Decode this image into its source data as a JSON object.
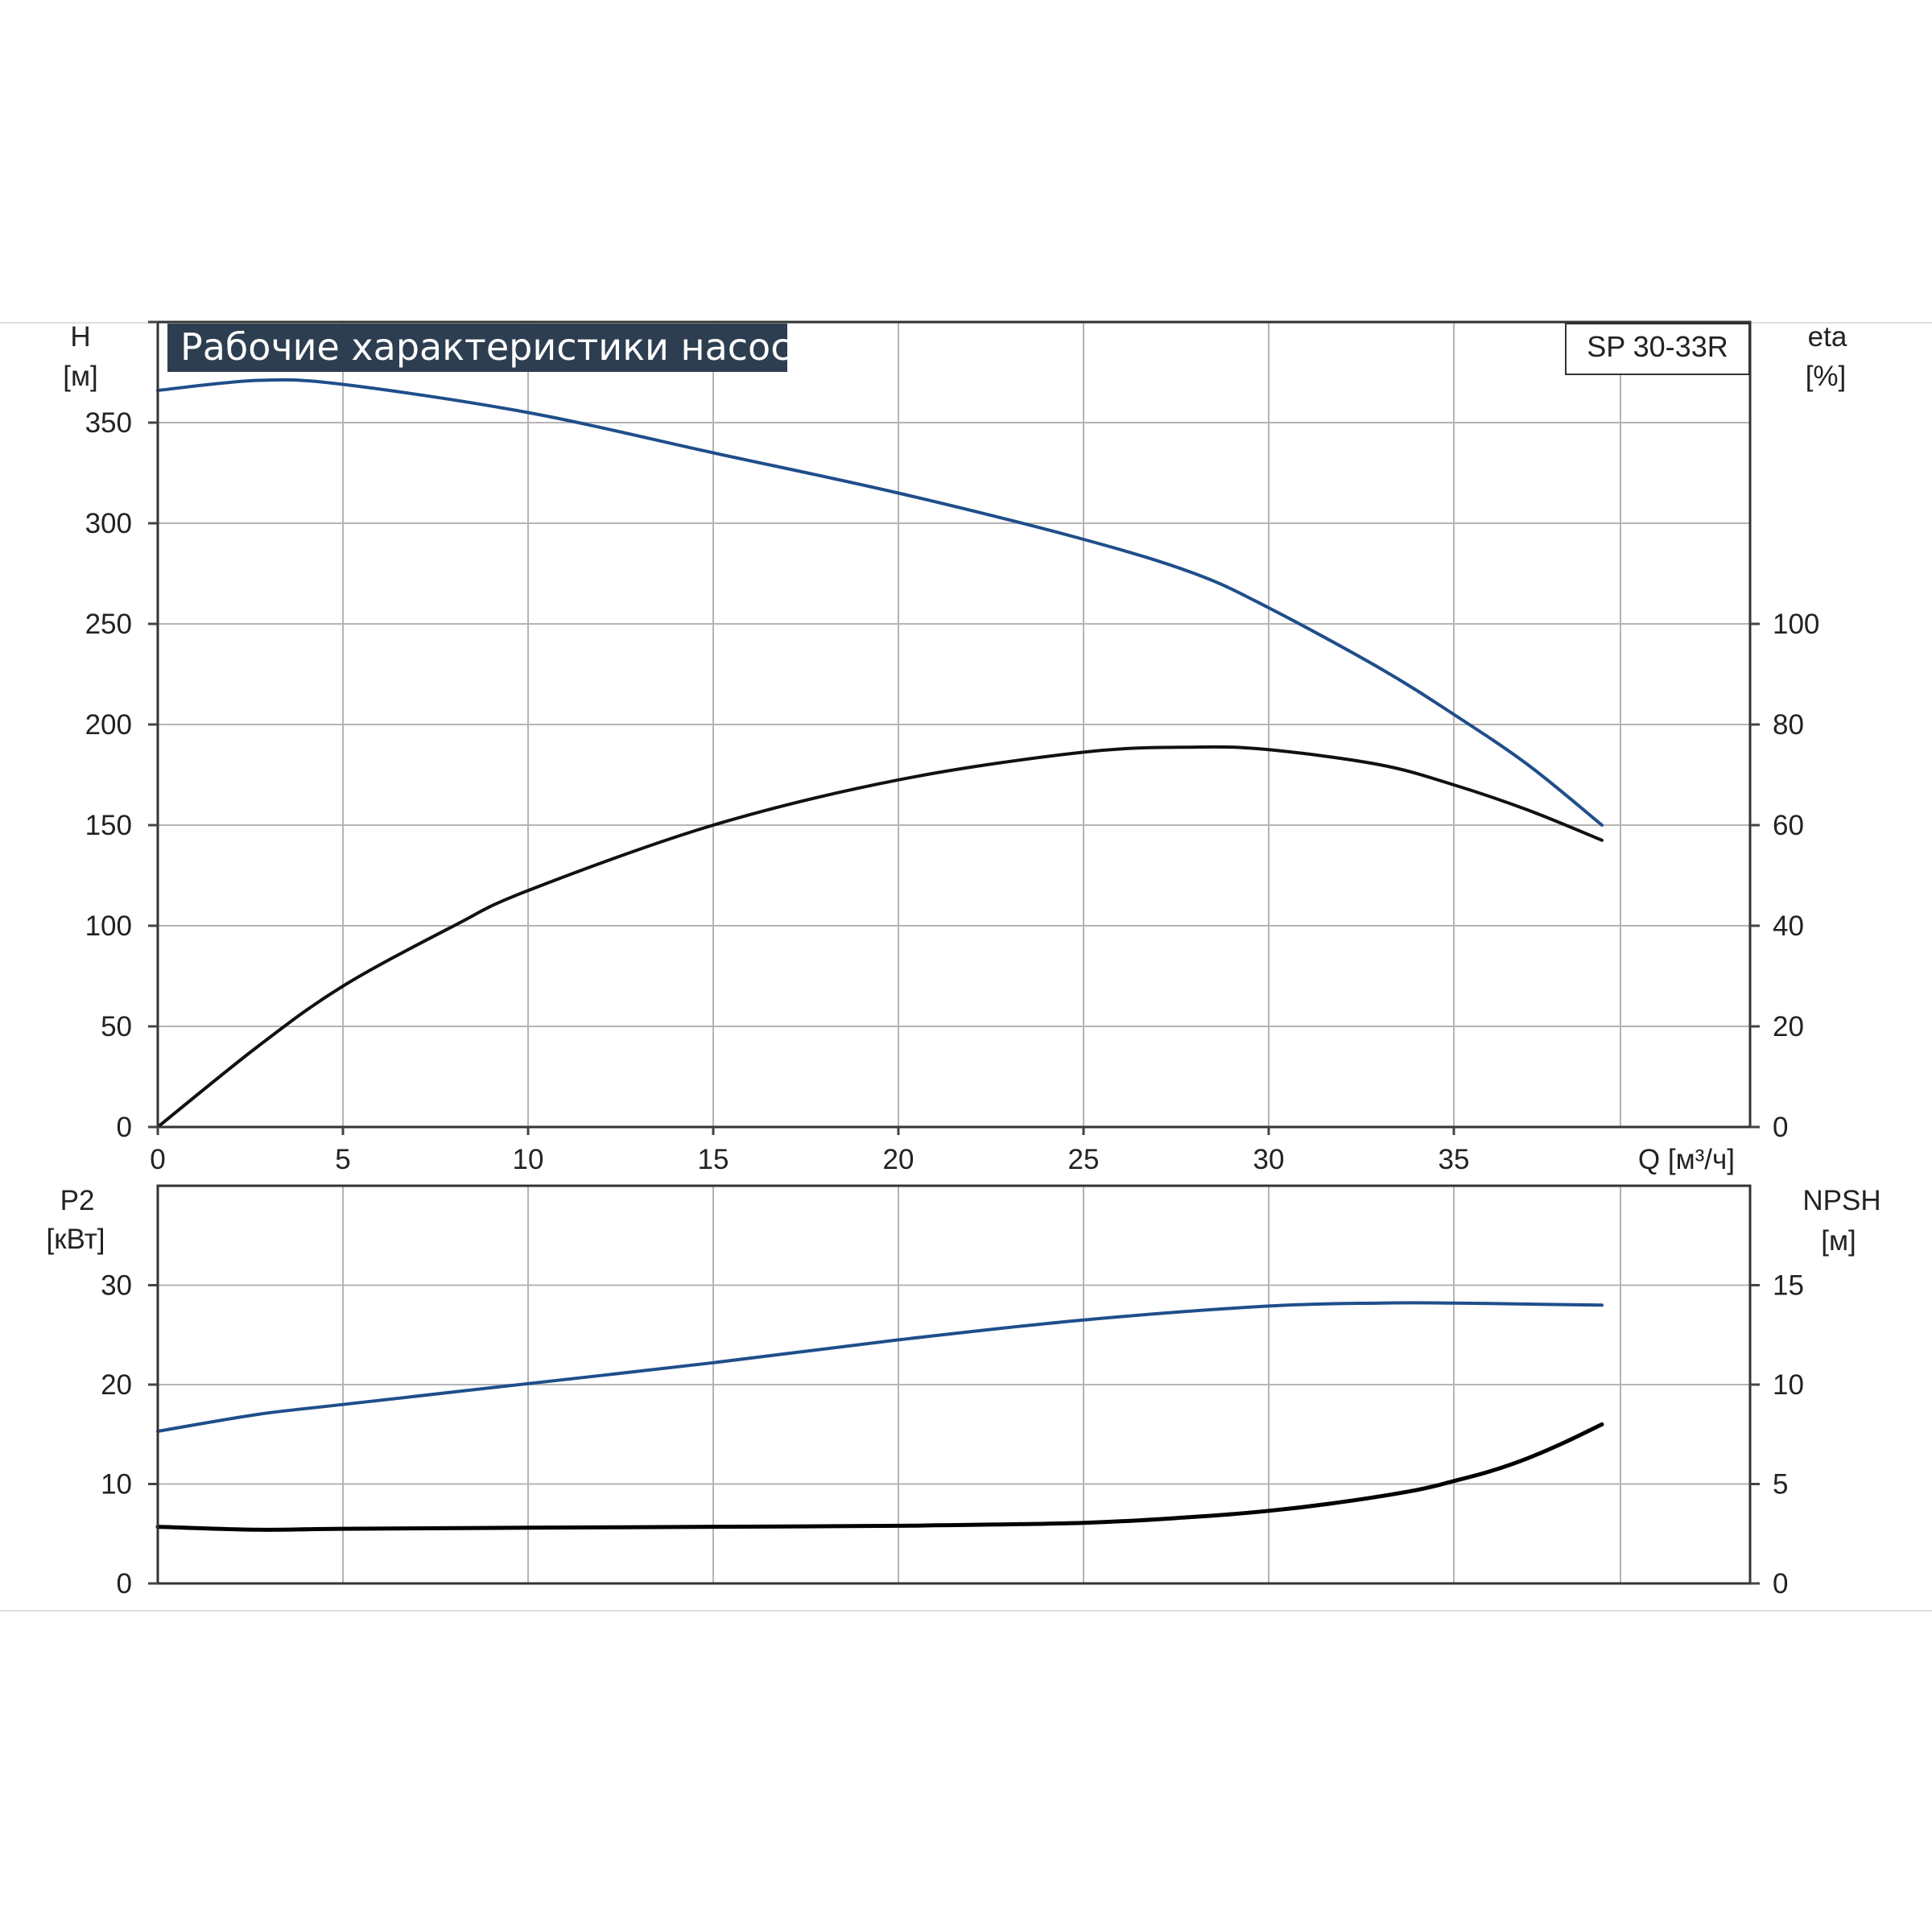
{
  "chart_data": [
    {
      "type": "line",
      "title": "Рабочие характеристики насоса",
      "model": "SP 30-33R",
      "xlabel": "Q [м³/ч]",
      "xlim": [
        0,
        43
      ],
      "x_ticks": [
        "0",
        "5",
        "10",
        "15",
        "20",
        "25",
        "30",
        "35"
      ],
      "y_left": {
        "label": "H",
        "unit": "[м]",
        "lim": [
          0,
          400
        ],
        "ticks": [
          "0",
          "50",
          "100",
          "150",
          "200",
          "250",
          "300",
          "350"
        ]
      },
      "y_right": {
        "label": "eta",
        "unit": "[%]",
        "lim": [
          0,
          160
        ],
        "ticks": [
          "0",
          "20",
          "40",
          "60",
          "80",
          "100"
        ]
      },
      "grid": true,
      "series": [
        {
          "axis": "left",
          "color": "#1f4e8a",
          "x": [
            0,
            2.7,
            5,
            10,
            15,
            20,
            25,
            28,
            30,
            33,
            35,
            37,
            39
          ],
          "y": [
            366,
            371,
            369,
            355,
            335,
            315,
            292,
            275,
            258,
            228,
            205,
            180,
            150
          ]
        },
        {
          "axis": "right",
          "color": "#111111",
          "x": [
            0,
            2.7,
            5,
            8,
            10,
            15,
            20,
            25,
            28,
            30,
            33,
            35,
            37,
            39
          ],
          "y": [
            0,
            16,
            28,
            40,
            47,
            60,
            69,
            74.5,
            75.5,
            75,
            72,
            68,
            63,
            57
          ]
        }
      ]
    },
    {
      "type": "line",
      "xlim": [
        0,
        43
      ],
      "y_left": {
        "label": "P2",
        "unit": "[кВт]",
        "lim": [
          0,
          40
        ],
        "ticks": [
          "0",
          "10",
          "20",
          "30"
        ]
      },
      "y_right": {
        "label": "NPSH",
        "unit": "[м]",
        "lim": [
          0,
          20
        ],
        "ticks": [
          "0",
          "5",
          "10",
          "15"
        ]
      },
      "grid": true,
      "series": [
        {
          "axis": "left",
          "color": "#1f4e8a",
          "x": [
            0,
            2.7,
            5,
            10,
            15,
            20,
            25,
            30,
            33,
            35,
            37,
            39
          ],
          "y": [
            15.3,
            17,
            18,
            20.1,
            22.2,
            24.5,
            26.5,
            27.9,
            28.2,
            28.2,
            28.1,
            28.0
          ]
        },
        {
          "axis": "right",
          "color": "#000000",
          "x": [
            0,
            2.7,
            5,
            10,
            15,
            20,
            25,
            28,
            30,
            32,
            34,
            35,
            36,
            37,
            38,
            39
          ],
          "y": [
            2.85,
            2.7,
            2.75,
            2.8,
            2.85,
            2.9,
            3.05,
            3.35,
            3.65,
            4.1,
            4.7,
            5.15,
            5.65,
            6.3,
            7.1,
            8.0
          ]
        }
      ]
    }
  ]
}
